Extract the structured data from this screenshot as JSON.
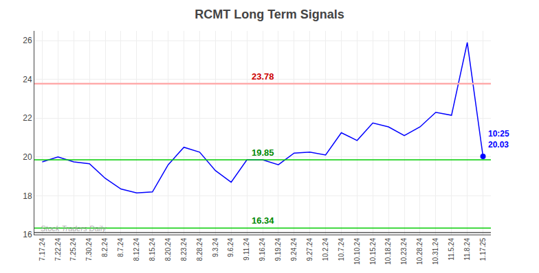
{
  "chart_data": {
    "type": "line",
    "title": "RCMT Long Term Signals",
    "categories": [
      "7.17.24",
      "7.22.24",
      "7.25.24",
      "7.30.24",
      "8.2.24",
      "8.7.24",
      "8.12.24",
      "8.15.24",
      "8.20.24",
      "8.23.24",
      "8.28.24",
      "9.3.24",
      "9.6.24",
      "9.11.24",
      "9.16.24",
      "9.19.24",
      "9.24.24",
      "9.27.24",
      "10.2.24",
      "10.7.24",
      "10.10.24",
      "10.15.24",
      "10.18.24",
      "10.23.24",
      "10.28.24",
      "10.31.24",
      "11.5.24",
      "11.8.24",
      "1.17.25"
    ],
    "values": [
      19.75,
      20.0,
      19.75,
      19.65,
      18.9,
      18.35,
      18.15,
      18.2,
      19.6,
      20.5,
      20.25,
      19.3,
      18.7,
      19.85,
      19.85,
      19.6,
      20.2,
      20.25,
      20.1,
      21.25,
      20.85,
      21.75,
      21.55,
      21.1,
      21.55,
      22.3,
      22.15,
      25.9,
      20.03
    ],
    "color": "#0000ff",
    "ylim": [
      16.0,
      26.5
    ],
    "yticks": [
      16,
      18,
      20,
      22,
      24,
      26
    ],
    "grid": true,
    "hlines": [
      {
        "value": 23.78,
        "label": "23.78",
        "color": "#ffaaaa",
        "label_color": "#cc0000"
      },
      {
        "value": 19.85,
        "label": "19.85",
        "color": "#00cc00",
        "label_color": "#008800"
      },
      {
        "value": 16.34,
        "label": "16.34",
        "color": "#00cc00",
        "label_color": "#008800"
      },
      {
        "value": 16.1,
        "color": "#333333"
      }
    ],
    "annotations": [
      {
        "text": "Stock Traders Daily",
        "color": "#999999"
      },
      {
        "text": "10:25\n20.03",
        "category": "1.17.25",
        "y": 20.03,
        "color": "#0000ff",
        "marker": "circle"
      }
    ]
  }
}
